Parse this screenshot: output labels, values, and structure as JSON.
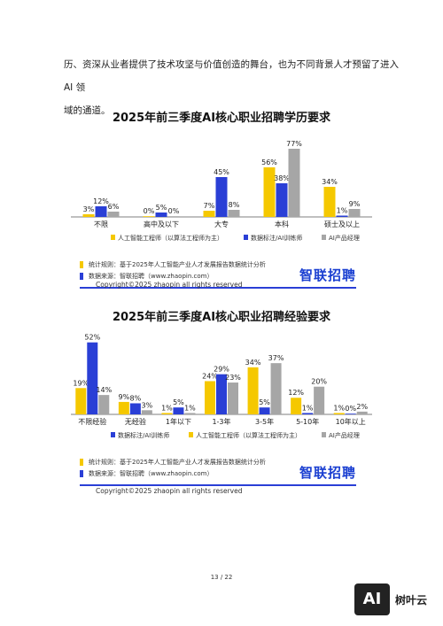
{
  "intro": {
    "line1": "历、资深从业者提供了技术攻坚与价值创造的舞台，也为不同背景人才预留了进入 AI 领",
    "line2": "域的通道。"
  },
  "colors": {
    "series1": "#f5c800",
    "series2": "#2a3fd6",
    "series3": "#a6a6a6"
  },
  "legend_items": [
    "人工智能工程师（以算法工程师为主）",
    "数据标注/AI训练师",
    "AI产品经理"
  ],
  "chart_data": [
    {
      "type": "bar",
      "title": "2025年前三季度AI核心职业招聘学历要求",
      "categories": [
        "不限",
        "高中及以下",
        "大专",
        "本科",
        "硕士及以上"
      ],
      "series": [
        {
          "name": "人工智能工程师（以算法工程师为主）",
          "values": [
            3,
            0,
            7,
            56,
            34
          ],
          "labels": [
            "3%",
            "0%",
            "7%",
            "56%",
            "34%"
          ]
        },
        {
          "name": "数据标注/AI训练师",
          "values": [
            12,
            5,
            45,
            38,
            1
          ],
          "labels": [
            "12%",
            "5%",
            "45%",
            "38%",
            "1%"
          ]
        },
        {
          "name": "AI产品经理",
          "values": [
            6,
            0,
            8,
            77,
            9
          ],
          "labels": [
            "6%",
            "0%",
            "8%",
            "77%",
            "9%"
          ]
        }
      ],
      "ylim": [
        0,
        80
      ],
      "legend_order": [
        0,
        1,
        2
      ],
      "legend_position": "bottom"
    },
    {
      "type": "bar",
      "title": "2025年前三季度AI核心职业招聘经验要求",
      "categories": [
        "不限经验",
        "无经验",
        "1年以下",
        "1-3年",
        "3-5年",
        "5-10年",
        "10年以上"
      ],
      "series": [
        {
          "name": "人工智能工程师（以算法工程师为主）",
          "values": [
            19,
            9,
            1,
            24,
            34,
            12,
            1
          ],
          "labels": [
            "19%",
            "9%",
            "1%",
            "24%",
            "34%",
            "12%",
            "1%"
          ]
        },
        {
          "name": "数据标注/AI训练师",
          "values": [
            52,
            8,
            5,
            29,
            5,
            1,
            0
          ],
          "labels": [
            "52%",
            "8%",
            "5%",
            "29%",
            "5%",
            "1%",
            "0%"
          ]
        },
        {
          "name": "AI产品经理",
          "values": [
            14,
            3,
            1,
            23,
            37,
            20,
            2
          ],
          "labels": [
            "14%",
            "3%",
            "1%",
            "23%",
            "37%",
            "20%",
            "2%"
          ]
        }
      ],
      "ylim": [
        0,
        55
      ],
      "legend_order": [
        1,
        0,
        2
      ],
      "legend_position": "bottom"
    }
  ],
  "note": {
    "stats_rule": "统计规则：基于2025年人工智能产业人才发展报告数据统计分析",
    "source": "数据来源：智联招聘（www.zhaopin.com）",
    "brand": "智联招聘"
  },
  "copyright": "Copyright©2025 zhaopin all rights reserved",
  "page_number": "13 / 22",
  "logo": {
    "mark": "AI",
    "name": "树叶云"
  }
}
